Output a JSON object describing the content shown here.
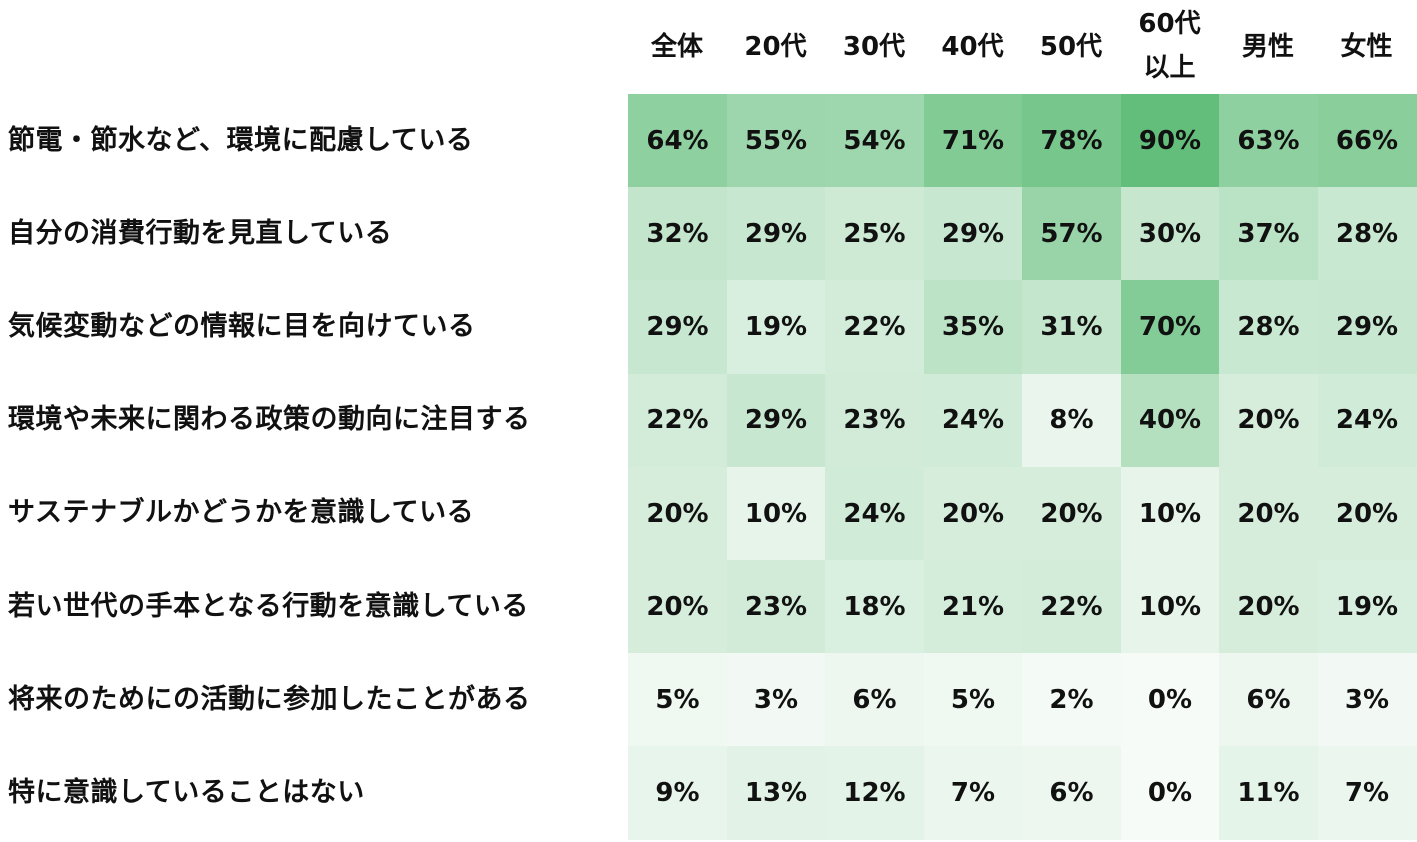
{
  "chart_data": {
    "type": "heatmap",
    "columns": [
      "全体",
      "20代",
      "30代",
      "40代",
      "50代",
      "60代\n以上",
      "男性",
      "女性"
    ],
    "rows": [
      "節電・節水など、環境に配慮している",
      "自分の消費行動を見直している",
      "気候変動などの情報に目を向けている",
      "環境や未来に関わる政策の動向に注目する",
      "サステナブルかどうかを意識している",
      "若い世代の手本となる行動を意識している",
      "将来のためにの活動に参加したことがある",
      "特に意識していることはない"
    ],
    "values": [
      [
        64,
        55,
        54,
        71,
        78,
        90,
        63,
        66
      ],
      [
        32,
        29,
        25,
        29,
        57,
        30,
        37,
        28
      ],
      [
        29,
        19,
        22,
        35,
        31,
        70,
        28,
        29
      ],
      [
        22,
        29,
        23,
        24,
        8,
        40,
        20,
        24
      ],
      [
        20,
        10,
        24,
        20,
        20,
        10,
        20,
        20
      ],
      [
        20,
        23,
        18,
        21,
        22,
        10,
        20,
        19
      ],
      [
        5,
        3,
        6,
        5,
        2,
        0,
        6,
        3
      ],
      [
        9,
        13,
        12,
        7,
        6,
        0,
        11,
        7
      ]
    ],
    "value_suffix": "%",
    "color_low": "#f7fbf8",
    "color_high": "#63be7b"
  }
}
